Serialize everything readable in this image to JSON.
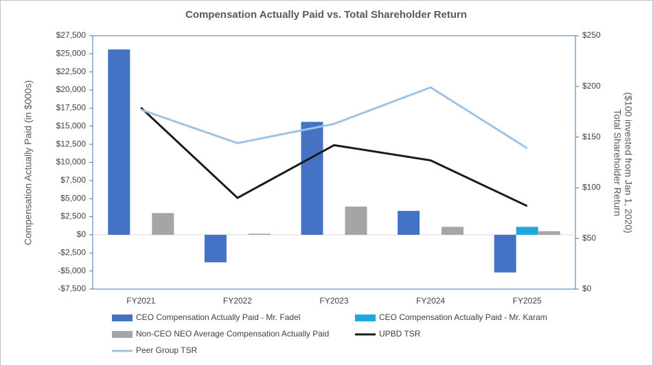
{
  "chart_data": {
    "type": "bar-line",
    "title": "Compensation Actually Paid vs. Total Shareholder Return",
    "y_label": "Compensation Actually Paid (in $000s)",
    "y2_label": [
      "Total Shareholder Return",
      "($100 invested from Jan 1, 2020)"
    ],
    "categories": [
      "FY2021",
      "FY2022",
      "FY2023",
      "FY2024",
      "FY2025"
    ],
    "series": [
      {
        "name": "CEO Compensation Actually Paid - Mr. Fadel",
        "type": "bar",
        "color": "#4472c4",
        "values": [
          25600,
          -3800,
          15600,
          3300,
          -5200
        ]
      },
      {
        "name": "CEO Compensation Actually Paid - Mr. Karam",
        "type": "bar",
        "color": "#1fa8e0",
        "values": [
          null,
          null,
          null,
          null,
          1100
        ]
      },
      {
        "name": "Non-CEO NEO Average Compensation Actually Paid",
        "type": "bar",
        "color": "#a5a5a5",
        "values": [
          3000,
          150,
          3900,
          1100,
          500
        ]
      },
      {
        "name": "UPBD TSR",
        "type": "line",
        "axis": "y2",
        "color": "#1a1a1a",
        "values": [
          179,
          90,
          142,
          127,
          82
        ]
      },
      {
        "name": "Peer Group TSR",
        "type": "line",
        "axis": "y2",
        "color": "#9dc3e6",
        "values": [
          177,
          144,
          163,
          199,
          139
        ]
      }
    ],
    "ylim": [
      -7500,
      27500
    ],
    "yticks": [
      {
        "value": -7500,
        "label": "-$7,500"
      },
      {
        "value": -5000,
        "label": "-$5,000"
      },
      {
        "value": -2500,
        "label": "-$2,500"
      },
      {
        "value": 0,
        "label": "$0"
      },
      {
        "value": 2500,
        "label": "$2,500"
      },
      {
        "value": 5000,
        "label": "$5,000"
      },
      {
        "value": 7500,
        "label": "$7,500"
      },
      {
        "value": 10000,
        "label": "$10,000"
      },
      {
        "value": 12500,
        "label": "$12,500"
      },
      {
        "value": 15000,
        "label": "$15,000"
      },
      {
        "value": 17500,
        "label": "$17,500"
      },
      {
        "value": 20000,
        "label": "$20,000"
      },
      {
        "value": 22500,
        "label": "$22,500"
      },
      {
        "value": 25000,
        "label": "$25,000"
      },
      {
        "value": 27500,
        "label": "$27,500"
      }
    ],
    "y2lim": [
      0,
      250
    ],
    "y2ticks": [
      {
        "value": 0,
        "label": "$0"
      },
      {
        "value": 50,
        "label": "$50"
      },
      {
        "value": 100,
        "label": "$100"
      },
      {
        "value": 150,
        "label": "$150"
      },
      {
        "value": 200,
        "label": "$200"
      },
      {
        "value": 250,
        "label": "$250"
      }
    ]
  }
}
